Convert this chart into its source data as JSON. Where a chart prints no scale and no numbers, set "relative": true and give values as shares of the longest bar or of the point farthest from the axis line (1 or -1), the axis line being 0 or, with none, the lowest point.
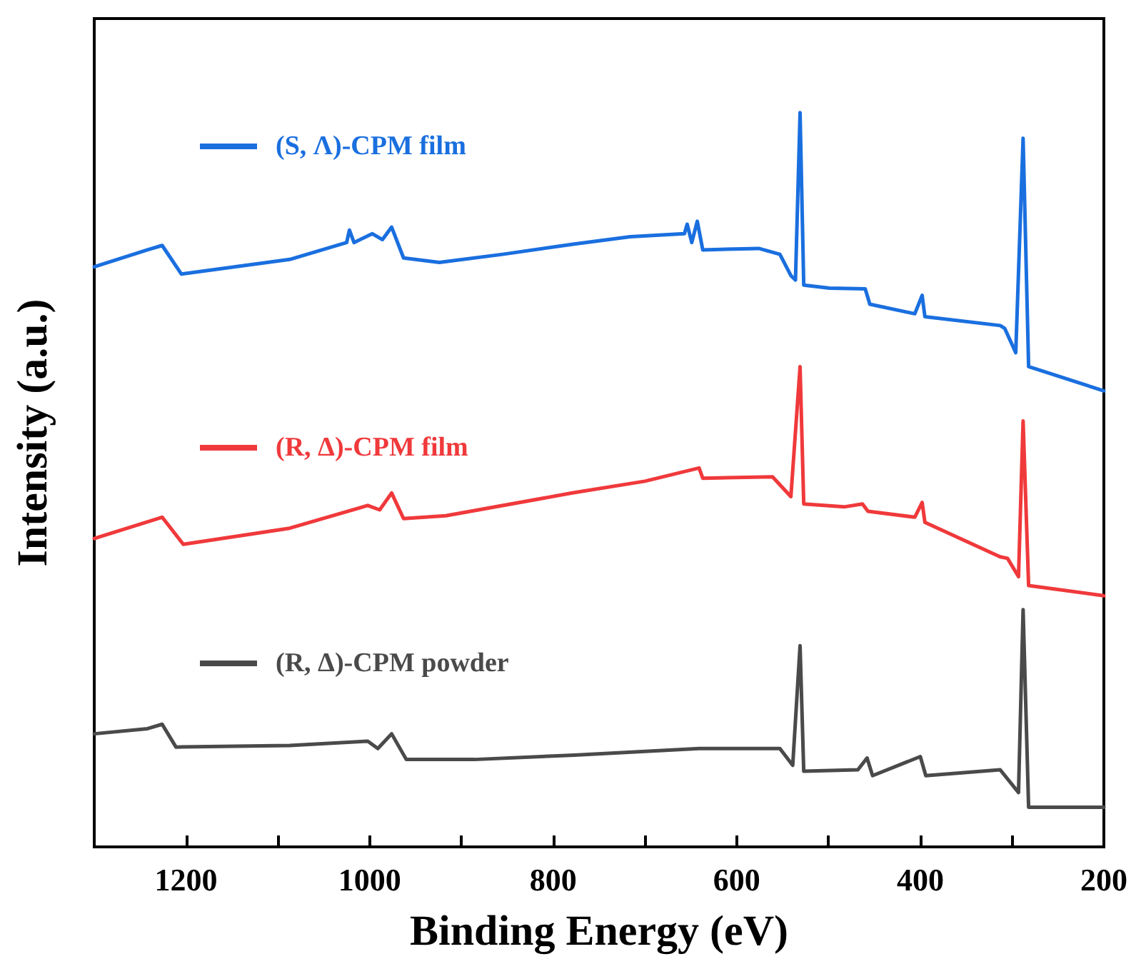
{
  "chart_data": {
    "type": "line",
    "relative": true,
    "xlabel": "Binding Energy (eV)",
    "ylabel": "Intensity (a.u.)",
    "xlim": [
      1300,
      200
    ],
    "xticks": [
      1200,
      {
        "value": 1100,
        "label": null
      },
      1000,
      {
        "value": 900,
        "label": null
      },
      800,
      {
        "value": 700,
        "label": null
      },
      600,
      {
        "value": 500,
        "label": null
      },
      400,
      {
        "value": 300,
        "label": null
      },
      200
    ],
    "legend": "top left",
    "grid": false,
    "marker": "none",
    "line_style": "solid",
    "series": [
      {
        "name": "(S, Λ)-CPM film",
        "color": "#1a6fdf",
        "x": [
          1300,
          1242,
          1226,
          1205,
          1087,
          1025,
          1022,
          1017,
          997,
          986,
          976,
          963,
          924,
          855,
          777,
          716,
          657,
          654,
          649,
          643,
          637,
          576,
          553,
          541,
          536,
          531,
          527,
          499,
          460,
          455,
          406,
          398,
          395,
          313,
          308,
          296,
          288,
          282,
          200
        ],
        "values": [
          0.79,
          0.813,
          0.819,
          0.78,
          0.8,
          0.823,
          0.84,
          0.823,
          0.835,
          0.827,
          0.844,
          0.802,
          0.796,
          0.807,
          0.821,
          0.831,
          0.835,
          0.848,
          0.823,
          0.852,
          0.813,
          0.815,
          0.807,
          0.778,
          0.772,
          1.0,
          0.765,
          0.761,
          0.76,
          0.739,
          0.726,
          0.751,
          0.722,
          0.71,
          0.706,
          0.673,
          0.965,
          0.654,
          0.621
        ]
      },
      {
        "name": "(R, Δ)-CPM film",
        "color": "#f0393b",
        "x": [
          1300,
          1226,
          1203,
          1087,
          1002,
          989,
          976,
          963,
          917,
          779,
          700,
          641,
          637,
          561,
          541,
          531,
          527,
          483,
          463,
          457,
          406,
          398,
          395,
          313,
          305,
          293,
          288,
          282,
          200
        ],
        "values": [
          0.42,
          0.449,
          0.412,
          0.434,
          0.465,
          0.459,
          0.482,
          0.447,
          0.451,
          0.482,
          0.498,
          0.516,
          0.502,
          0.504,
          0.477,
          0.654,
          0.467,
          0.463,
          0.467,
          0.457,
          0.449,
          0.469,
          0.442,
          0.395,
          0.393,
          0.368,
          0.58,
          0.356,
          0.342
        ]
      },
      {
        "name": "(R, Δ)-CPM powder",
        "color": "#4a4a4a",
        "x": [
          1300,
          1242,
          1226,
          1211,
          1087,
          1002,
          991,
          976,
          960,
          886,
          777,
          641,
          553,
          539,
          531,
          527,
          468,
          458,
          452,
          400,
          394,
          313,
          293,
          288,
          282,
          200
        ],
        "values": [
          0.154,
          0.161,
          0.167,
          0.136,
          0.138,
          0.144,
          0.134,
          0.154,
          0.119,
          0.119,
          0.125,
          0.134,
          0.134,
          0.111,
          0.274,
          0.103,
          0.105,
          0.121,
          0.097,
          0.123,
          0.097,
          0.105,
          0.074,
          0.323,
          0.054,
          0.054
        ]
      }
    ]
  }
}
